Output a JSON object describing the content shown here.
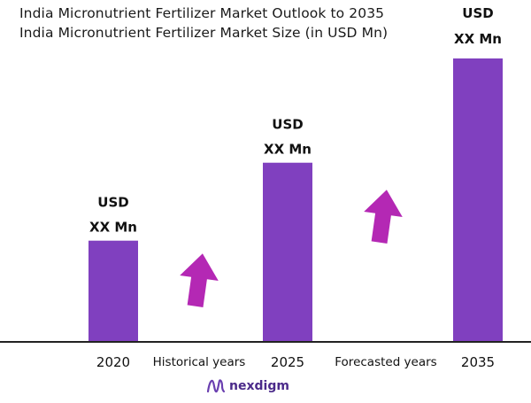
{
  "chart_data": {
    "type": "bar",
    "title": "India Micronutrient Fertilizer Market Outlook to 2035",
    "subtitle": "India Micronutrient Fertilizer Market Size (in USD Mn)",
    "categories": [
      "2020",
      "2025",
      "2035"
    ],
    "values": [
      1.0,
      1.77,
      2.8
    ],
    "data_labels": [
      [
        "USD",
        "XX Mn"
      ],
      [
        "USD",
        "XX Mn"
      ],
      [
        "USD",
        "XX Mn"
      ]
    ],
    "period_labels": [
      "Historical years",
      "Forecasted years"
    ],
    "ylim": [
      0,
      2.8
    ],
    "grid": false,
    "colors": {
      "bar": "#8040bf",
      "arrow": "#b428b4",
      "axis": "#222222"
    }
  },
  "brand": {
    "name": "nexdigm",
    "icon": "nexdigm-logo-icon"
  }
}
